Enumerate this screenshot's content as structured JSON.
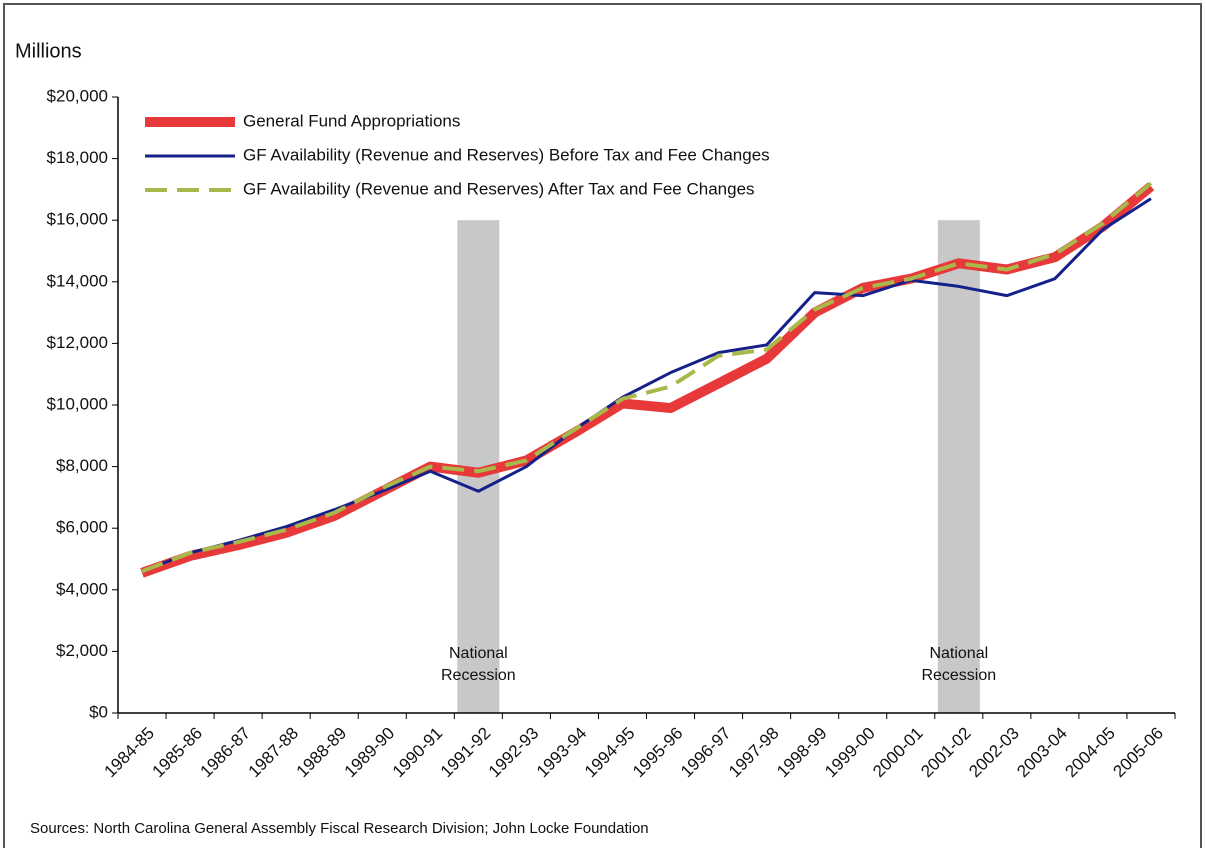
{
  "chart_data": {
    "type": "line",
    "y_label": "Millions",
    "categories": [
      "1984-85",
      "1985-86",
      "1986-87",
      "1987-88",
      "1988-89",
      "1989-90",
      "1990-91",
      "1991-92",
      "1992-93",
      "1993-94",
      "1994-95",
      "1995-96",
      "1996-97",
      "1997-98",
      "1998-99",
      "1999-00",
      "2000-01",
      "2001-02",
      "2002-03",
      "2003-04",
      "2004-05",
      "2005-06"
    ],
    "series": [
      {
        "name": "General Fund Appropriations",
        "color": "#e8393a",
        "style": "thick",
        "values": [
          4550,
          5100,
          5450,
          5850,
          6400,
          7200,
          8000,
          7800,
          8200,
          9100,
          10050,
          9900,
          10700,
          11500,
          13000,
          13800,
          14100,
          14600,
          14400,
          14800,
          15800,
          17100
        ]
      },
      {
        "name": "GF Availability (Revenue and Reserves) Before Tax and Fee Changes",
        "color": "#16208a",
        "style": "solid",
        "values": [
          4600,
          5200,
          5600,
          6050,
          6600,
          7200,
          7850,
          7200,
          8000,
          9200,
          10250,
          11050,
          11700,
          11950,
          13650,
          13550,
          14050,
          13850,
          13550,
          14100,
          15700,
          16700
        ]
      },
      {
        "name": "GF Availability (Revenue and Reserves) After Tax and Fee Changes",
        "color": "#a9b84a",
        "style": "dashed",
        "values": [
          4600,
          5200,
          5550,
          5950,
          6500,
          7300,
          8000,
          7850,
          8200,
          9200,
          10200,
          10600,
          11600,
          11800,
          13100,
          13800,
          14100,
          14600,
          14400,
          14900,
          15900,
          17200
        ]
      }
    ],
    "ylim": [
      0,
      20000
    ],
    "yticks": [
      {
        "value": 0,
        "label": "$0"
      },
      {
        "value": 2000,
        "label": "$2,000"
      },
      {
        "value": 4000,
        "label": "$4,000"
      },
      {
        "value": 6000,
        "label": "$6,000"
      },
      {
        "value": 8000,
        "label": "$8,000"
      },
      {
        "value": 10000,
        "label": "$10,000"
      },
      {
        "value": 12000,
        "label": "$12,000"
      },
      {
        "value": 14000,
        "label": "$14,000"
      },
      {
        "value": 16000,
        "label": "$16,000"
      },
      {
        "value": 18000,
        "label": "$18,000"
      },
      {
        "value": 20000,
        "label": "$20,000"
      }
    ],
    "shaded_periods": [
      {
        "category": "1991-92",
        "label": [
          "National",
          "Recession"
        ],
        "color": "#c8c8c8"
      },
      {
        "category": "2001-02",
        "label": [
          "National",
          "Recession"
        ],
        "color": "#c8c8c8"
      }
    ],
    "legend": "upper-left",
    "grid": false,
    "source": "Sources: North Carolina General Assembly Fiscal Research Division; John Locke Foundation"
  }
}
